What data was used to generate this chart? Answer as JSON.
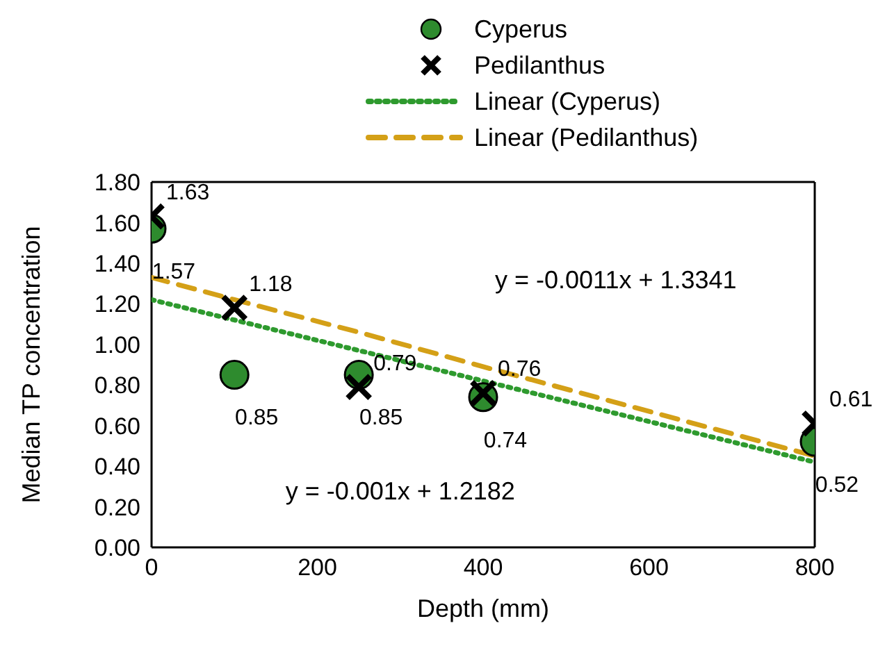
{
  "chart_data": {
    "type": "scatter",
    "xlabel": "Depth (mm)",
    "ylabel": "Median TP concentration",
    "xlim": [
      0,
      800
    ],
    "xticks": [
      0,
      200,
      400,
      600,
      800
    ],
    "ylim": [
      0,
      1.8
    ],
    "yticks": [
      {
        "value": 0,
        "label": "0.00"
      },
      {
        "value": 0.2,
        "label": "0.20"
      },
      {
        "value": 0.4,
        "label": "0.40"
      },
      {
        "value": 0.6,
        "label": "0.60"
      },
      {
        "value": 0.8,
        "label": "0.80"
      },
      {
        "value": 1,
        "label": "1.00"
      },
      {
        "value": 1.2,
        "label": "1.20"
      },
      {
        "value": 1.4,
        "label": "1.40"
      },
      {
        "value": 1.6,
        "label": "1.60"
      },
      {
        "value": 1.8,
        "label": "1.80"
      }
    ],
    "legend": "top",
    "x": [
      0,
      100,
      250,
      400,
      800
    ],
    "series": [
      {
        "name": "Cyperus",
        "marker": "circle",
        "color": "#2e8b2e",
        "values": [
          1.57,
          0.85,
          0.85,
          0.74,
          0.52
        ],
        "value_labels": [
          "1.57",
          "0.85",
          "0.85",
          "0.74",
          "0.52"
        ]
      },
      {
        "name": "Pedilanthus",
        "marker": "cross",
        "color": "#000000",
        "values": [
          1.63,
          1.18,
          0.79,
          0.76,
          0.61
        ],
        "value_labels": [
          "1.63",
          "1.18",
          "0.79",
          "0.76",
          "0.61"
        ]
      },
      {
        "name": "Linear (Cyperus)",
        "type": "line",
        "marker": "none",
        "line_style": "dotted",
        "color": "#2e9a2e",
        "values": [
          1.22,
          1.12,
          0.97,
          0.82,
          0.42
        ]
      },
      {
        "name": "Linear (Pedilanthus)",
        "type": "line",
        "marker": "none",
        "line_style": "dashed",
        "color": "#d4a017",
        "values": [
          1.33,
          1.22,
          1.06,
          0.89,
          0.45
        ]
      }
    ],
    "annotations": [
      "y = -0.0011x + 1.3341",
      "y = -0.001x + 1.2182"
    ]
  }
}
